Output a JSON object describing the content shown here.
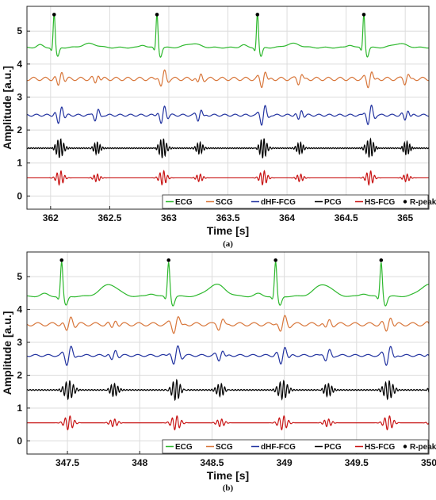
{
  "chart_data": [
    {
      "type": "line",
      "caption": "(a)",
      "xlabel": "Time [s]",
      "ylabel": "Amplitude [a.u.]",
      "xlim": [
        361.8,
        365.2
      ],
      "ylim": [
        -0.4,
        5.75
      ],
      "xticks": [
        "362",
        "362.5",
        "363",
        "363.5",
        "364",
        "364.5",
        "365"
      ],
      "yticks": [
        "0",
        "1",
        "2",
        "3",
        "4",
        "5"
      ],
      "grid": true,
      "legend": [
        "ECG",
        "SCG",
        "dHF-FCG",
        "PCG",
        "HS-FCG",
        "R-peaks"
      ],
      "legend_position": "bottom-right",
      "r_peaks": {
        "x": [
          362.03,
          362.9,
          363.75,
          364.65
        ],
        "y": [
          5.5,
          5.5,
          5.5,
          5.5
        ]
      },
      "series": [
        {
          "name": "ECG",
          "baseline": 4.5,
          "color": "#2db82d"
        },
        {
          "name": "SCG",
          "baseline": 3.55,
          "color": "#d8763a"
        },
        {
          "name": "dHF-FCG",
          "baseline": 2.45,
          "color": "#2233a0"
        },
        {
          "name": "PCG",
          "baseline": 1.45,
          "color": "#000000"
        },
        {
          "name": "HS-FCG",
          "baseline": 0.55,
          "color": "#c81414"
        }
      ]
    },
    {
      "type": "line",
      "caption": "(b)",
      "xlabel": "Time [s]",
      "ylabel": "Amplitude [a.u.]",
      "xlim": [
        347.22,
        350.0
      ],
      "ylim": [
        -0.4,
        5.75
      ],
      "xticks": [
        "347.5",
        "348",
        "348.5",
        "349",
        "349.5",
        "350"
      ],
      "yticks": [
        "0",
        "1",
        "2",
        "3",
        "4",
        "5"
      ],
      "grid": true,
      "legend": [
        "ECG",
        "SCG",
        "dHF-FCG",
        "PCG",
        "HS-FCG",
        "R-peaks"
      ],
      "legend_position": "bottom-right",
      "r_peaks": {
        "x": [
          347.46,
          348.2,
          348.94,
          349.67
        ],
        "y": [
          5.5,
          5.5,
          5.5,
          5.5
        ]
      },
      "series": [
        {
          "name": "ECG",
          "baseline": 4.4,
          "color": "#2db82d"
        },
        {
          "name": "SCG",
          "baseline": 3.55,
          "color": "#d8763a"
        },
        {
          "name": "dHF-FCG",
          "baseline": 2.6,
          "color": "#2233a0"
        },
        {
          "name": "PCG",
          "baseline": 1.55,
          "color": "#000000"
        },
        {
          "name": "HS-FCG",
          "baseline": 0.55,
          "color": "#c81414"
        }
      ]
    }
  ]
}
